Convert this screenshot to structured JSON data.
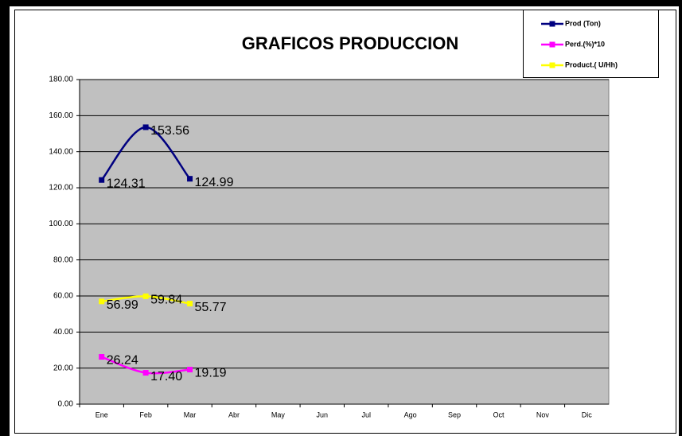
{
  "chart_data": {
    "type": "line",
    "title": "GRAFICOS PRODUCCION",
    "categories": [
      "Ene",
      "Feb",
      "Mar",
      "Abr",
      "May",
      "Jun",
      "Jul",
      "Ago",
      "Sep",
      "Oct",
      "Nov",
      "Dic"
    ],
    "series": [
      {
        "name": "Prod (Ton)",
        "color": "#000080",
        "values": [
          124.31,
          153.56,
          124.99,
          null,
          null,
          null,
          null,
          null,
          null,
          null,
          null,
          null
        ],
        "value_labels": [
          "124.31",
          "153.56",
          "124.99",
          null,
          null,
          null,
          null,
          null,
          null,
          null,
          null,
          null
        ]
      },
      {
        "name": "Perd.(%)*10",
        "color": "#ff00ff",
        "values": [
          26.24,
          17.4,
          19.19,
          null,
          null,
          null,
          null,
          null,
          null,
          null,
          null,
          null
        ],
        "value_labels": [
          "26.24",
          "17.40",
          "19.19",
          null,
          null,
          null,
          null,
          null,
          null,
          null,
          null,
          null
        ]
      },
      {
        "name": "Product.( U/Hh)",
        "color": "#ffff00",
        "values": [
          56.99,
          59.84,
          55.77,
          null,
          null,
          null,
          null,
          null,
          null,
          null,
          null,
          null
        ],
        "value_labels": [
          "56.99",
          "59.84",
          "55.77",
          null,
          null,
          null,
          null,
          null,
          null,
          null,
          null,
          null
        ]
      }
    ],
    "ylim": [
      0,
      180
    ],
    "yticks": [
      {
        "value": 0,
        "label": "0.00"
      },
      {
        "value": 20,
        "label": "20.00"
      },
      {
        "value": 40,
        "label": "40.00"
      },
      {
        "value": 60,
        "label": "60.00"
      },
      {
        "value": 80,
        "label": "80.00"
      },
      {
        "value": 100,
        "label": "100.00"
      },
      {
        "value": 120,
        "label": "120.00"
      },
      {
        "value": 140,
        "label": "140.00"
      },
      {
        "value": 160,
        "label": "160.00"
      },
      {
        "value": 180,
        "label": "180.00"
      }
    ],
    "grid": true,
    "smooth": true,
    "plot_color": "#c0c0c0",
    "legend": "top-right"
  }
}
